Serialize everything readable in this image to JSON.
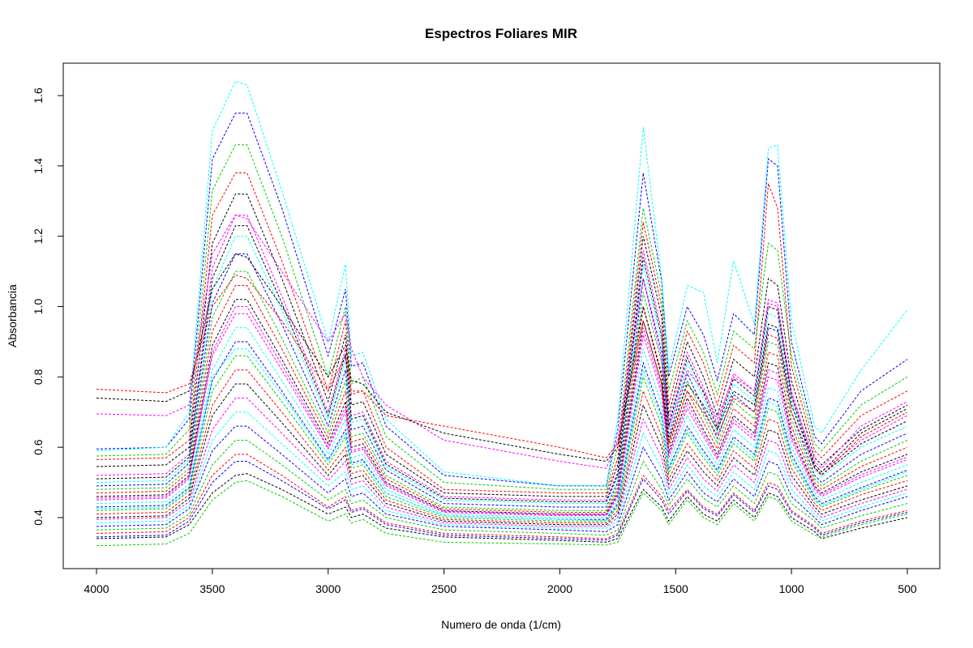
{
  "chart_data": {
    "type": "line",
    "title": "Espectros Foliares MIR",
    "xlabel": "Numero de onda (1/cm)",
    "ylabel": "Absorbancia",
    "xlim": [
      4000,
      500
    ],
    "x_reversed": true,
    "ylim": [
      0.3,
      1.66
    ],
    "x_ticks": [
      4000,
      3500,
      3000,
      2500,
      2000,
      1500,
      1000,
      500
    ],
    "y_ticks": [
      0.4,
      0.6,
      0.8,
      1.0,
      1.2,
      1.4,
      1.6
    ],
    "x_tick_labels": [
      "4000",
      "3500",
      "3000",
      "2500",
      "2000",
      "1500",
      "1000",
      "500"
    ],
    "y_tick_labels": [
      "0.4",
      "0.6",
      "0.8",
      "1.0",
      "1.2",
      "1.4",
      "1.6"
    ],
    "grid": false,
    "legend": "none",
    "series_colors": [
      "#000000",
      "#ff0000",
      "#00cd00",
      "#0000ff",
      "#00ffff",
      "#ff00ff"
    ],
    "x": [
      4000,
      3700,
      3600,
      3500,
      3400,
      3350,
      3200,
      3000,
      2925,
      2900,
      2850,
      2750,
      2500,
      2000,
      1800,
      1750,
      1640,
      1560,
      1530,
      1450,
      1380,
      1320,
      1250,
      1160,
      1100,
      1060,
      1000,
      900,
      870,
      700,
      500
    ],
    "series": [
      {
        "values": [
          0.34,
          0.345,
          0.38,
          0.47,
          0.52,
          0.525,
          0.48,
          0.41,
          0.43,
          0.4,
          0.41,
          0.37,
          0.345,
          0.335,
          0.33,
          0.34,
          0.48,
          0.43,
          0.39,
          0.46,
          0.41,
          0.39,
          0.45,
          0.4,
          0.47,
          0.46,
          0.4,
          0.36,
          0.34,
          0.37,
          0.4
        ]
      },
      {
        "values": [
          0.355,
          0.36,
          0.4,
          0.52,
          0.58,
          0.58,
          0.52,
          0.43,
          0.46,
          0.42,
          0.43,
          0.385,
          0.355,
          0.345,
          0.34,
          0.355,
          0.52,
          0.46,
          0.42,
          0.48,
          0.43,
          0.41,
          0.47,
          0.42,
          0.5,
          0.49,
          0.42,
          0.375,
          0.355,
          0.39,
          0.42
        ]
      },
      {
        "values": [
          0.365,
          0.37,
          0.41,
          0.55,
          0.62,
          0.62,
          0.55,
          0.45,
          0.48,
          0.44,
          0.45,
          0.4,
          0.365,
          0.355,
          0.35,
          0.365,
          0.56,
          0.48,
          0.435,
          0.51,
          0.455,
          0.43,
          0.49,
          0.44,
          0.53,
          0.52,
          0.44,
          0.39,
          0.37,
          0.405,
          0.44
        ]
      },
      {
        "values": [
          0.375,
          0.38,
          0.425,
          0.59,
          0.66,
          0.66,
          0.58,
          0.47,
          0.51,
          0.46,
          0.47,
          0.41,
          0.375,
          0.365,
          0.36,
          0.38,
          0.6,
          0.51,
          0.45,
          0.53,
          0.47,
          0.445,
          0.51,
          0.46,
          0.56,
          0.55,
          0.46,
          0.4,
          0.38,
          0.42,
          0.46
        ]
      },
      {
        "values": [
          0.385,
          0.39,
          0.435,
          0.62,
          0.7,
          0.7,
          0.61,
          0.49,
          0.53,
          0.48,
          0.49,
          0.42,
          0.38,
          0.37,
          0.37,
          0.39,
          0.64,
          0.54,
          0.465,
          0.55,
          0.49,
          0.46,
          0.53,
          0.48,
          0.59,
          0.58,
          0.48,
          0.41,
          0.39,
          0.43,
          0.47
        ]
      },
      {
        "values": [
          0.395,
          0.4,
          0.445,
          0.65,
          0.74,
          0.74,
          0.64,
          0.505,
          0.56,
          0.495,
          0.505,
          0.43,
          0.385,
          0.375,
          0.375,
          0.4,
          0.68,
          0.57,
          0.48,
          0.57,
          0.51,
          0.475,
          0.55,
          0.5,
          0.62,
          0.61,
          0.5,
          0.42,
          0.4,
          0.44,
          0.48
        ]
      },
      {
        "values": [
          0.4,
          0.405,
          0.455,
          0.69,
          0.78,
          0.78,
          0.67,
          0.52,
          0.58,
          0.51,
          0.52,
          0.44,
          0.39,
          0.38,
          0.38,
          0.41,
          0.72,
          0.6,
          0.495,
          0.59,
          0.53,
          0.49,
          0.57,
          0.52,
          0.65,
          0.64,
          0.52,
          0.43,
          0.41,
          0.45,
          0.49
        ]
      },
      {
        "values": [
          0.41,
          0.415,
          0.465,
          0.72,
          0.82,
          0.82,
          0.7,
          0.535,
          0.6,
          0.525,
          0.535,
          0.45,
          0.395,
          0.385,
          0.385,
          0.42,
          0.76,
          0.63,
          0.51,
          0.61,
          0.55,
          0.505,
          0.59,
          0.54,
          0.68,
          0.67,
          0.54,
          0.44,
          0.42,
          0.465,
          0.505
        ]
      },
      {
        "values": [
          0.42,
          0.425,
          0.475,
          0.76,
          0.86,
          0.86,
          0.73,
          0.55,
          0.63,
          0.54,
          0.55,
          0.46,
          0.4,
          0.39,
          0.39,
          0.43,
          0.8,
          0.66,
          0.525,
          0.64,
          0.57,
          0.52,
          0.61,
          0.56,
          0.71,
          0.7,
          0.56,
          0.45,
          0.43,
          0.475,
          0.52
        ]
      },
      {
        "values": [
          0.43,
          0.435,
          0.485,
          0.79,
          0.9,
          0.9,
          0.76,
          0.565,
          0.65,
          0.555,
          0.565,
          0.47,
          0.405,
          0.395,
          0.395,
          0.44,
          0.84,
          0.69,
          0.54,
          0.66,
          0.59,
          0.535,
          0.63,
          0.58,
          0.74,
          0.73,
          0.58,
          0.46,
          0.44,
          0.485,
          0.535
        ]
      },
      {
        "values": [
          0.44,
          0.445,
          0.495,
          0.82,
          0.94,
          0.94,
          0.79,
          0.58,
          0.68,
          0.57,
          0.58,
          0.48,
          0.41,
          0.4,
          0.4,
          0.45,
          0.88,
          0.72,
          0.555,
          0.69,
          0.61,
          0.55,
          0.65,
          0.6,
          0.77,
          0.76,
          0.6,
          0.47,
          0.45,
          0.5,
          0.55
        ]
      },
      {
        "values": [
          0.45,
          0.455,
          0.51,
          0.86,
          0.98,
          0.98,
          0.82,
          0.595,
          0.7,
          0.585,
          0.595,
          0.49,
          0.415,
          0.405,
          0.405,
          0.46,
          0.92,
          0.75,
          0.57,
          0.71,
          0.63,
          0.565,
          0.67,
          0.62,
          0.8,
          0.79,
          0.62,
          0.48,
          0.46,
          0.515,
          0.565
        ]
      },
      {
        "values": [
          0.46,
          0.465,
          0.52,
          0.89,
          1.02,
          1.02,
          0.85,
          0.61,
          0.73,
          0.6,
          0.61,
          0.5,
          0.42,
          0.41,
          0.41,
          0.47,
          0.96,
          0.78,
          0.585,
          0.74,
          0.65,
          0.58,
          0.69,
          0.64,
          0.84,
          0.83,
          0.64,
          0.49,
          0.47,
          0.53,
          0.58
        ]
      },
      {
        "values": [
          0.47,
          0.475,
          0.53,
          0.93,
          1.06,
          1.06,
          0.88,
          0.625,
          0.76,
          0.615,
          0.625,
          0.51,
          0.425,
          0.415,
          0.415,
          0.48,
          1.0,
          0.81,
          0.6,
          0.76,
          0.67,
          0.595,
          0.71,
          0.66,
          0.87,
          0.86,
          0.66,
          0.5,
          0.48,
          0.545,
          0.6
        ]
      },
      {
        "values": [
          0.48,
          0.485,
          0.54,
          0.97,
          1.1,
          1.1,
          0.91,
          0.64,
          0.79,
          0.63,
          0.64,
          0.52,
          0.43,
          0.42,
          0.42,
          0.49,
          1.04,
          0.84,
          0.615,
          0.79,
          0.69,
          0.61,
          0.73,
          0.68,
          0.9,
          0.89,
          0.68,
          0.51,
          0.49,
          0.56,
          0.62
        ]
      },
      {
        "values": [
          0.49,
          0.495,
          0.555,
          1.01,
          1.15,
          1.15,
          0.95,
          0.66,
          0.82,
          0.65,
          0.66,
          0.535,
          0.44,
          0.43,
          0.43,
          0.5,
          1.08,
          0.87,
          0.63,
          0.81,
          0.71,
          0.625,
          0.75,
          0.7,
          0.94,
          0.93,
          0.7,
          0.52,
          0.5,
          0.58,
          0.64
        ]
      },
      {
        "values": [
          0.5,
          0.505,
          0.565,
          1.05,
          1.2,
          1.2,
          0.99,
          0.68,
          0.85,
          0.67,
          0.68,
          0.545,
          0.45,
          0.44,
          0.44,
          0.515,
          1.12,
          0.9,
          0.65,
          0.84,
          0.74,
          0.645,
          0.78,
          0.73,
          0.98,
          0.97,
          0.73,
          0.535,
          0.515,
          0.6,
          0.66
        ]
      },
      {
        "values": [
          0.52,
          0.525,
          0.58,
          1.11,
          1.26,
          1.26,
          1.03,
          0.7,
          0.88,
          0.69,
          0.7,
          0.56,
          0.46,
          0.45,
          0.45,
          0.53,
          1.16,
          0.93,
          0.67,
          0.87,
          0.77,
          0.665,
          0.81,
          0.76,
          1.02,
          1.01,
          0.76,
          0.55,
          0.53,
          0.62,
          0.69
        ]
      },
      {
        "values": [
          0.545,
          0.55,
          0.6,
          1.18,
          1.32,
          1.32,
          1.08,
          0.73,
          0.92,
          0.72,
          0.73,
          0.58,
          0.47,
          0.46,
          0.46,
          0.55,
          1.2,
          0.97,
          0.69,
          0.9,
          0.8,
          0.69,
          0.85,
          0.8,
          1.08,
          1.06,
          0.79,
          0.57,
          0.55,
          0.65,
          0.72
        ]
      },
      {
        "values": [
          0.565,
          0.57,
          0.62,
          1.26,
          1.38,
          1.38,
          1.13,
          0.76,
          0.96,
          0.75,
          0.76,
          0.6,
          0.48,
          0.47,
          0.47,
          0.57,
          1.24,
          1.0,
          0.72,
          0.93,
          0.84,
          0.72,
          0.89,
          0.84,
          1.35,
          1.28,
          0.83,
          0.59,
          0.57,
          0.69,
          0.76
        ]
      },
      {
        "values": [
          0.575,
          0.58,
          0.65,
          1.33,
          1.46,
          1.46,
          1.2,
          0.8,
          1.0,
          0.78,
          0.8,
          0.63,
          0.5,
          0.48,
          0.48,
          0.6,
          1.28,
          1.03,
          0.76,
          0.96,
          0.87,
          0.75,
          0.93,
          0.88,
          1.18,
          1.16,
          0.86,
          0.61,
          0.59,
          0.72,
          0.8
        ]
      },
      {
        "values": [
          0.595,
          0.6,
          0.68,
          1.42,
          1.55,
          1.55,
          1.28,
          0.86,
          1.05,
          0.83,
          0.84,
          0.66,
          0.52,
          0.49,
          0.49,
          0.65,
          1.38,
          1.07,
          0.8,
          1.0,
          0.92,
          0.79,
          0.98,
          0.92,
          1.42,
          1.4,
          0.9,
          0.63,
          0.61,
          0.76,
          0.85
        ]
      },
      {
        "values": [
          0.59,
          0.6,
          0.7,
          1.5,
          1.64,
          1.63,
          1.33,
          0.9,
          1.12,
          0.86,
          0.87,
          0.68,
          0.53,
          0.49,
          0.49,
          0.68,
          1.51,
          1.08,
          0.82,
          1.06,
          1.04,
          0.84,
          1.13,
          0.95,
          1.45,
          1.46,
          0.96,
          0.66,
          0.64,
          0.82,
          0.99
        ]
      },
      {
        "values": [
          0.695,
          0.69,
          0.72,
          1.15,
          1.26,
          1.25,
          1.1,
          0.9,
          0.98,
          0.88,
          0.8,
          0.72,
          0.62,
          0.56,
          0.54,
          0.62,
          1.08,
          0.85,
          0.65,
          0.82,
          0.76,
          0.68,
          0.8,
          0.76,
          1.01,
          1.0,
          0.75,
          0.56,
          0.54,
          0.66,
          0.73
        ]
      },
      {
        "values": [
          0.74,
          0.73,
          0.76,
          1.05,
          1.15,
          1.14,
          1.0,
          0.8,
          0.89,
          0.79,
          0.78,
          0.7,
          0.64,
          0.58,
          0.56,
          0.6,
          1.0,
          0.8,
          0.62,
          0.78,
          0.72,
          0.65,
          0.76,
          0.72,
          0.95,
          0.94,
          0.72,
          0.55,
          0.53,
          0.64,
          0.71
        ]
      },
      {
        "values": [
          0.765,
          0.755,
          0.78,
          1.0,
          1.09,
          1.08,
          0.96,
          0.76,
          0.86,
          0.76,
          0.76,
          0.69,
          0.66,
          0.6,
          0.57,
          0.61,
          0.96,
          0.78,
          0.61,
          0.76,
          0.7,
          0.635,
          0.74,
          0.7,
          0.92,
          0.91,
          0.7,
          0.54,
          0.52,
          0.63,
          0.7
        ]
      },
      {
        "values": [
          0.32,
          0.325,
          0.355,
          0.45,
          0.5,
          0.505,
          0.46,
          0.39,
          0.41,
          0.385,
          0.395,
          0.355,
          0.33,
          0.325,
          0.322,
          0.33,
          0.47,
          0.42,
          0.38,
          0.45,
          0.4,
          0.38,
          0.44,
          0.39,
          0.46,
          0.45,
          0.39,
          0.35,
          0.345,
          0.38,
          0.41
        ]
      },
      {
        "values": [
          0.345,
          0.35,
          0.39,
          0.5,
          0.56,
          0.56,
          0.505,
          0.425,
          0.45,
          0.415,
          0.425,
          0.38,
          0.35,
          0.34,
          0.336,
          0.35,
          0.51,
          0.45,
          0.41,
          0.475,
          0.425,
          0.405,
          0.465,
          0.415,
          0.49,
          0.48,
          0.415,
          0.37,
          0.35,
          0.385,
          0.415
        ]
      },
      {
        "values": [
          0.425,
          0.43,
          0.48,
          0.8,
          0.88,
          0.88,
          0.75,
          0.56,
          0.64,
          0.55,
          0.56,
          0.47,
          0.405,
          0.395,
          0.392,
          0.435,
          0.82,
          0.68,
          0.535,
          0.65,
          0.58,
          0.53,
          0.62,
          0.57,
          0.73,
          0.715,
          0.57,
          0.455,
          0.435,
          0.48,
          0.53
        ]
      },
      {
        "values": [
          0.455,
          0.46,
          0.515,
          0.87,
          1.0,
          1.0,
          0.835,
          0.6,
          0.715,
          0.59,
          0.6,
          0.495,
          0.418,
          0.408,
          0.408,
          0.465,
          0.94,
          0.765,
          0.578,
          0.725,
          0.64,
          0.572,
          0.68,
          0.63,
          0.82,
          0.81,
          0.63,
          0.485,
          0.465,
          0.522,
          0.572
        ]
      },
      {
        "values": [
          0.51,
          0.515,
          0.572,
          1.08,
          1.23,
          1.23,
          1.01,
          0.69,
          0.865,
          0.68,
          0.69,
          0.552,
          0.455,
          0.445,
          0.445,
          0.522,
          1.14,
          0.915,
          0.66,
          0.855,
          0.755,
          0.655,
          0.795,
          0.745,
          1.0,
          0.99,
          0.745,
          0.542,
          0.522,
          0.61,
          0.675
        ]
      }
    ]
  }
}
